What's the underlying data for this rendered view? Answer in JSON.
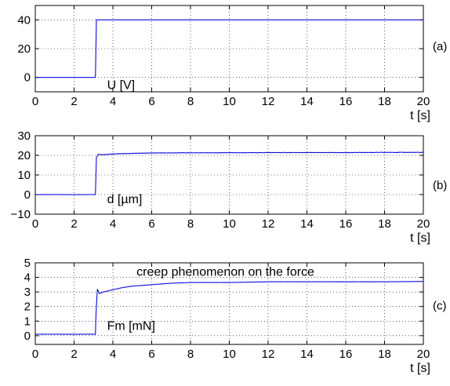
{
  "chart_data": [
    {
      "type": "line",
      "panel_label": "(a)",
      "series_label": "U [V]",
      "xlabel": "t [s]",
      "xlim": [
        0,
        20
      ],
      "ylim": [
        -10,
        50
      ],
      "xticks": [
        0,
        2,
        4,
        6,
        8,
        10,
        12,
        14,
        16,
        18,
        20
      ],
      "yticks": [
        0,
        20,
        40
      ],
      "grid": true,
      "series": [
        {
          "x": [
            0,
            3.1,
            3.15,
            20
          ],
          "y": [
            0,
            0,
            40,
            40
          ]
        }
      ]
    },
    {
      "type": "line",
      "panel_label": "(b)",
      "series_label": "d [µm]",
      "xlabel": "t [s]",
      "xlim": [
        0,
        20
      ],
      "ylim": [
        -10,
        30
      ],
      "xticks": [
        0,
        2,
        4,
        6,
        8,
        10,
        12,
        14,
        16,
        18,
        20
      ],
      "yticks": [
        -10,
        0,
        10,
        20,
        30
      ],
      "ytick_labels": [
        "−10",
        "0",
        "10",
        "20",
        "30"
      ],
      "grid": true,
      "series": [
        {
          "x": [
            0,
            3.1,
            3.15,
            3.25,
            3.5,
            4,
            5,
            6,
            8,
            10,
            12,
            14,
            16,
            18,
            20
          ],
          "y": [
            0,
            0,
            19,
            20.5,
            20.3,
            20.7,
            21.0,
            21.2,
            21.3,
            21.3,
            21.4,
            21.4,
            21.4,
            21.5,
            21.5
          ]
        }
      ]
    },
    {
      "type": "line",
      "panel_label": "(c)",
      "series_label": "Fm [mN]",
      "annotation": "creep phenomenon on the force",
      "xlabel": "t [s]",
      "xlim": [
        0,
        20
      ],
      "ylim": [
        -0.6,
        5
      ],
      "xticks": [
        0,
        2,
        4,
        6,
        8,
        10,
        12,
        14,
        16,
        18,
        20
      ],
      "yticks": [
        0,
        1,
        2,
        3,
        4,
        5
      ],
      "grid": true,
      "series": [
        {
          "x": [
            0,
            3.1,
            3.13,
            3.2,
            3.3,
            3.5,
            4,
            4.5,
            5,
            6,
            7,
            8,
            10,
            12,
            14,
            16,
            18,
            20
          ],
          "y": [
            0.1,
            0.1,
            1.5,
            3.2,
            2.9,
            3.0,
            3.15,
            3.3,
            3.4,
            3.5,
            3.6,
            3.65,
            3.65,
            3.7,
            3.7,
            3.7,
            3.7,
            3.72
          ]
        }
      ]
    }
  ]
}
